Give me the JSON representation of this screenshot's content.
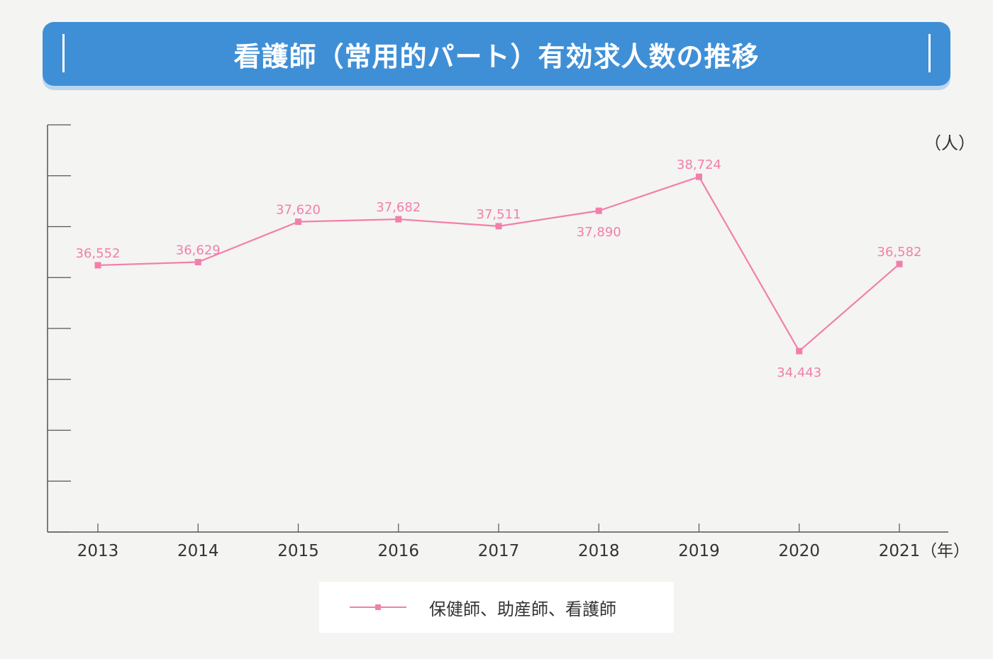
{
  "title": "看護師（常用的パート）有効求人数の推移",
  "colors": {
    "banner": "#3f8fd6",
    "series": "#f27fab",
    "axis": "#555555",
    "text": "#333333"
  },
  "chart_data": {
    "type": "line",
    "title": "看護師（常用的パート）有効求人数の推移",
    "x": [
      "2013",
      "2014",
      "2015",
      "2016",
      "2017",
      "2018",
      "2019",
      "2020",
      "2021"
    ],
    "series": [
      {
        "name": "保健師、助産師、看護師",
        "values": [
          36552,
          36629,
          37620,
          37682,
          37511,
          37890,
          38724,
          34443,
          36582
        ],
        "labels": [
          "36,552",
          "36,629",
          "37,620",
          "37,682",
          "37,511",
          "37,890",
          "38,724",
          "34,443",
          "36,582"
        ]
      }
    ],
    "xlabel": "（年）",
    "ylabel": "（人）",
    "y_tick_labels_visible": false,
    "grid": false,
    "legend_position": "bottom-center"
  }
}
